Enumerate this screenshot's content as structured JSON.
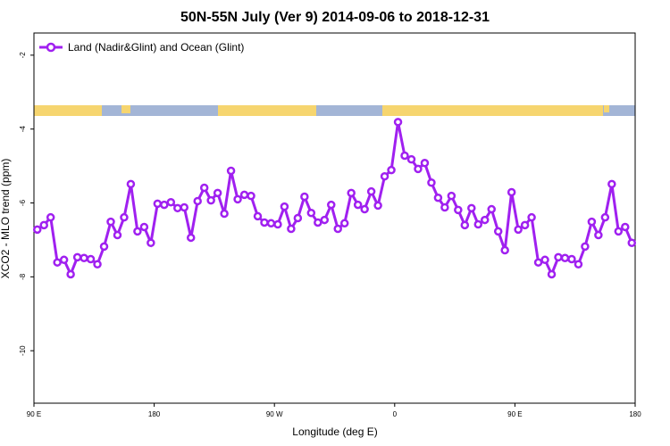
{
  "chart_data": {
    "type": "line",
    "title": "50N-55N July (Ver 9)   2014-09-06 to 2018-12-31",
    "x_label": "Longitude (deg E)",
    "y_label": "XCO2 - MLO trend (ppm)",
    "xlim": [
      90,
      540
    ],
    "ylim": [
      -11.42,
      -1.4
    ],
    "xticks": [
      {
        "value": 90,
        "label": "90 E"
      },
      {
        "value": 180,
        "label": "180"
      },
      {
        "value": 270,
        "label": "90 W"
      },
      {
        "value": 360,
        "label": "0"
      },
      {
        "value": 450,
        "label": "90 E"
      },
      {
        "value": 540,
        "label": "180"
      }
    ],
    "yticks": [
      -2,
      -4,
      -6,
      -8,
      -10
    ],
    "legend": "top-left",
    "x": [
      92.5,
      97.5,
      102.5,
      107.5,
      112.5,
      117.5,
      122.5,
      127.5,
      132.5,
      137.5,
      142.5,
      147.5,
      152.5,
      157.5,
      162.5,
      167.5,
      172.5,
      177.5,
      182.5,
      187.5,
      192.5,
      197.5,
      202.5,
      207.5,
      212.5,
      217.5,
      222.5,
      227.5,
      232.5,
      237.5,
      242.5,
      247.5,
      252.5,
      257.5,
      262.5,
      267.5,
      272.5,
      277.5,
      282.5,
      287.5,
      292.5,
      297.5,
      302.5,
      307.5,
      312.5,
      317.5,
      322.5,
      327.5,
      332.5,
      337.5,
      342.5,
      347.5,
      352.5,
      357.5,
      362.5,
      367.5,
      372.5,
      377.5,
      382.5,
      387.5,
      392.5,
      397.5,
      402.5,
      407.5,
      412.5,
      417.5,
      422.5,
      427.5,
      432.5,
      437.5,
      442.5,
      447.5,
      452.5,
      457.5,
      462.5,
      467.5,
      472.5,
      477.5,
      482.5,
      487.5,
      492.5,
      497.5,
      502.5,
      507.5,
      512.5,
      517.5,
      522.5,
      527.5,
      532.5,
      537.5
    ],
    "series": [
      {
        "name": "Land (Nadir&Glint) and Ocean (Glint)",
        "color": "#a020f0",
        "values": [
          -6.72,
          -6.6,
          -6.39,
          -7.61,
          -7.54,
          -7.93,
          -7.47,
          -7.49,
          -7.52,
          -7.66,
          -7.18,
          -6.51,
          -6.87,
          -6.39,
          -5.49,
          -6.77,
          -6.65,
          -7.08,
          -6.02,
          -6.05,
          -5.98,
          -6.14,
          -6.12,
          -6.94,
          -5.95,
          -5.59,
          -5.93,
          -5.73,
          -6.29,
          -5.13,
          -5.9,
          -5.78,
          -5.81,
          -6.36,
          -6.53,
          -6.55,
          -6.58,
          -6.1,
          -6.7,
          -6.41,
          -5.83,
          -6.27,
          -6.53,
          -6.46,
          -6.05,
          -6.7,
          -6.55,
          -5.73,
          -6.05,
          -6.17,
          -5.69,
          -6.07,
          -5.28,
          -5.11,
          -3.81,
          -4.72,
          -4.82,
          -5.08,
          -4.92,
          -5.45,
          -5.86,
          -6.12,
          -5.81,
          -6.19,
          -6.6,
          -6.14,
          -6.58,
          -6.46,
          -6.17,
          -6.77,
          -7.28,
          -5.71,
          -6.72,
          -6.6,
          -6.39,
          -7.61,
          -7.54,
          -7.93,
          -7.47,
          -7.49,
          -7.52,
          -7.66,
          -7.18,
          -6.51,
          -6.87,
          -6.39,
          -5.49,
          -6.77,
          -6.65,
          -7.08
        ]
      }
    ]
  }
}
